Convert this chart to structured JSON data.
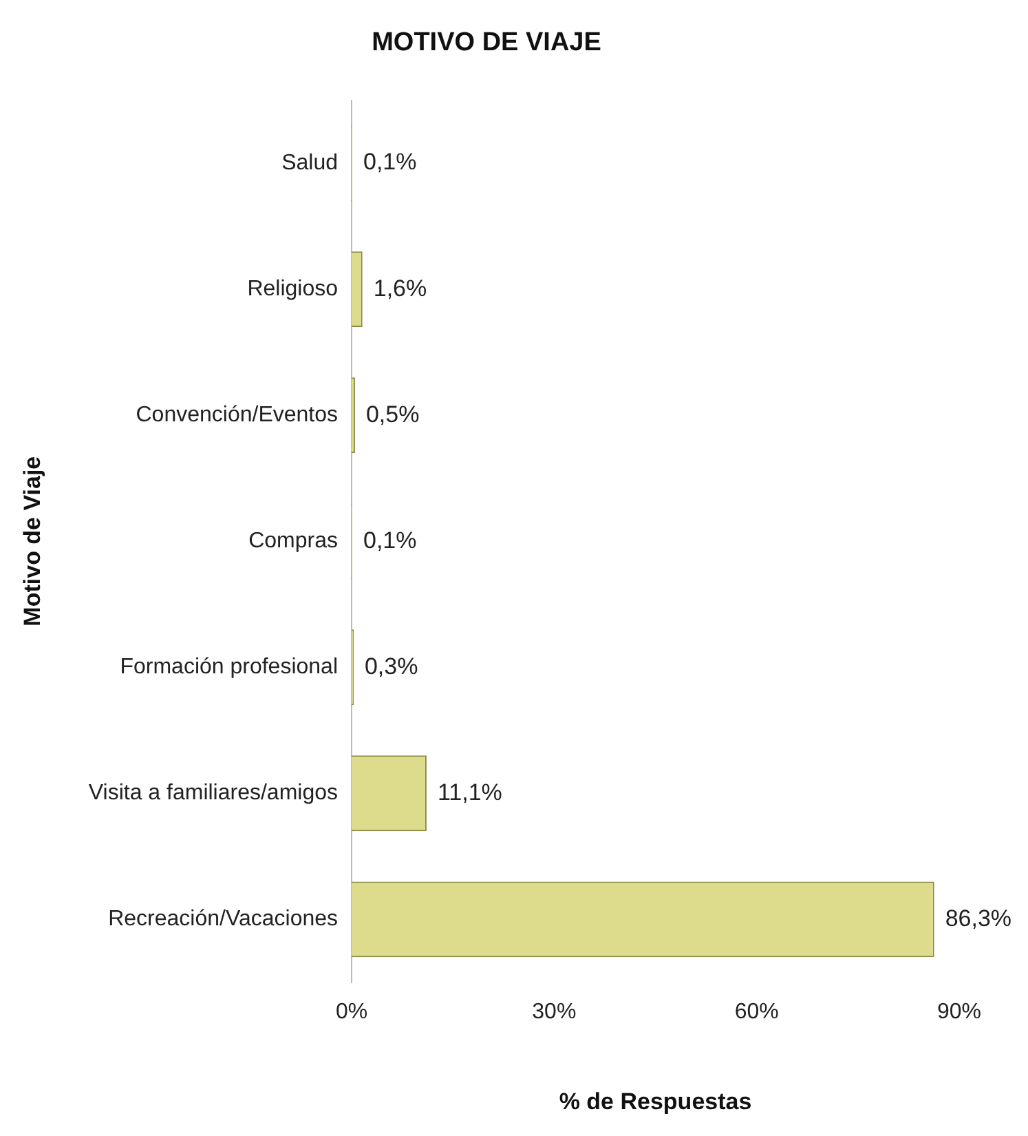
{
  "chart_data": {
    "type": "bar",
    "orientation": "horizontal",
    "title": "MOTIVO DE VIAJE",
    "xlabel": "% de Respuestas",
    "ylabel": "Motivo de Viaje",
    "categories": [
      "Salud",
      "Religioso",
      "Convención/Eventos",
      "Compras",
      "Formación profesional",
      "Visita a familiares/amigos",
      "Recreación/Vacaciones"
    ],
    "values": [
      0.1,
      1.6,
      0.5,
      0.1,
      0.3,
      11.1,
      86.3
    ],
    "value_labels": [
      "0,1%",
      "1,6%",
      "0,5%",
      "0,1%",
      "0,3%",
      "11,1%",
      "86,3%"
    ],
    "color": "#dcdc8c",
    "xlim": [
      0,
      90
    ],
    "xticks": [
      {
        "value": 0,
        "label": "0%"
      },
      {
        "value": 30,
        "label": "30%"
      },
      {
        "value": 60,
        "label": "60%"
      },
      {
        "value": 90,
        "label": "90%"
      }
    ],
    "grid": false,
    "legend": false
  }
}
